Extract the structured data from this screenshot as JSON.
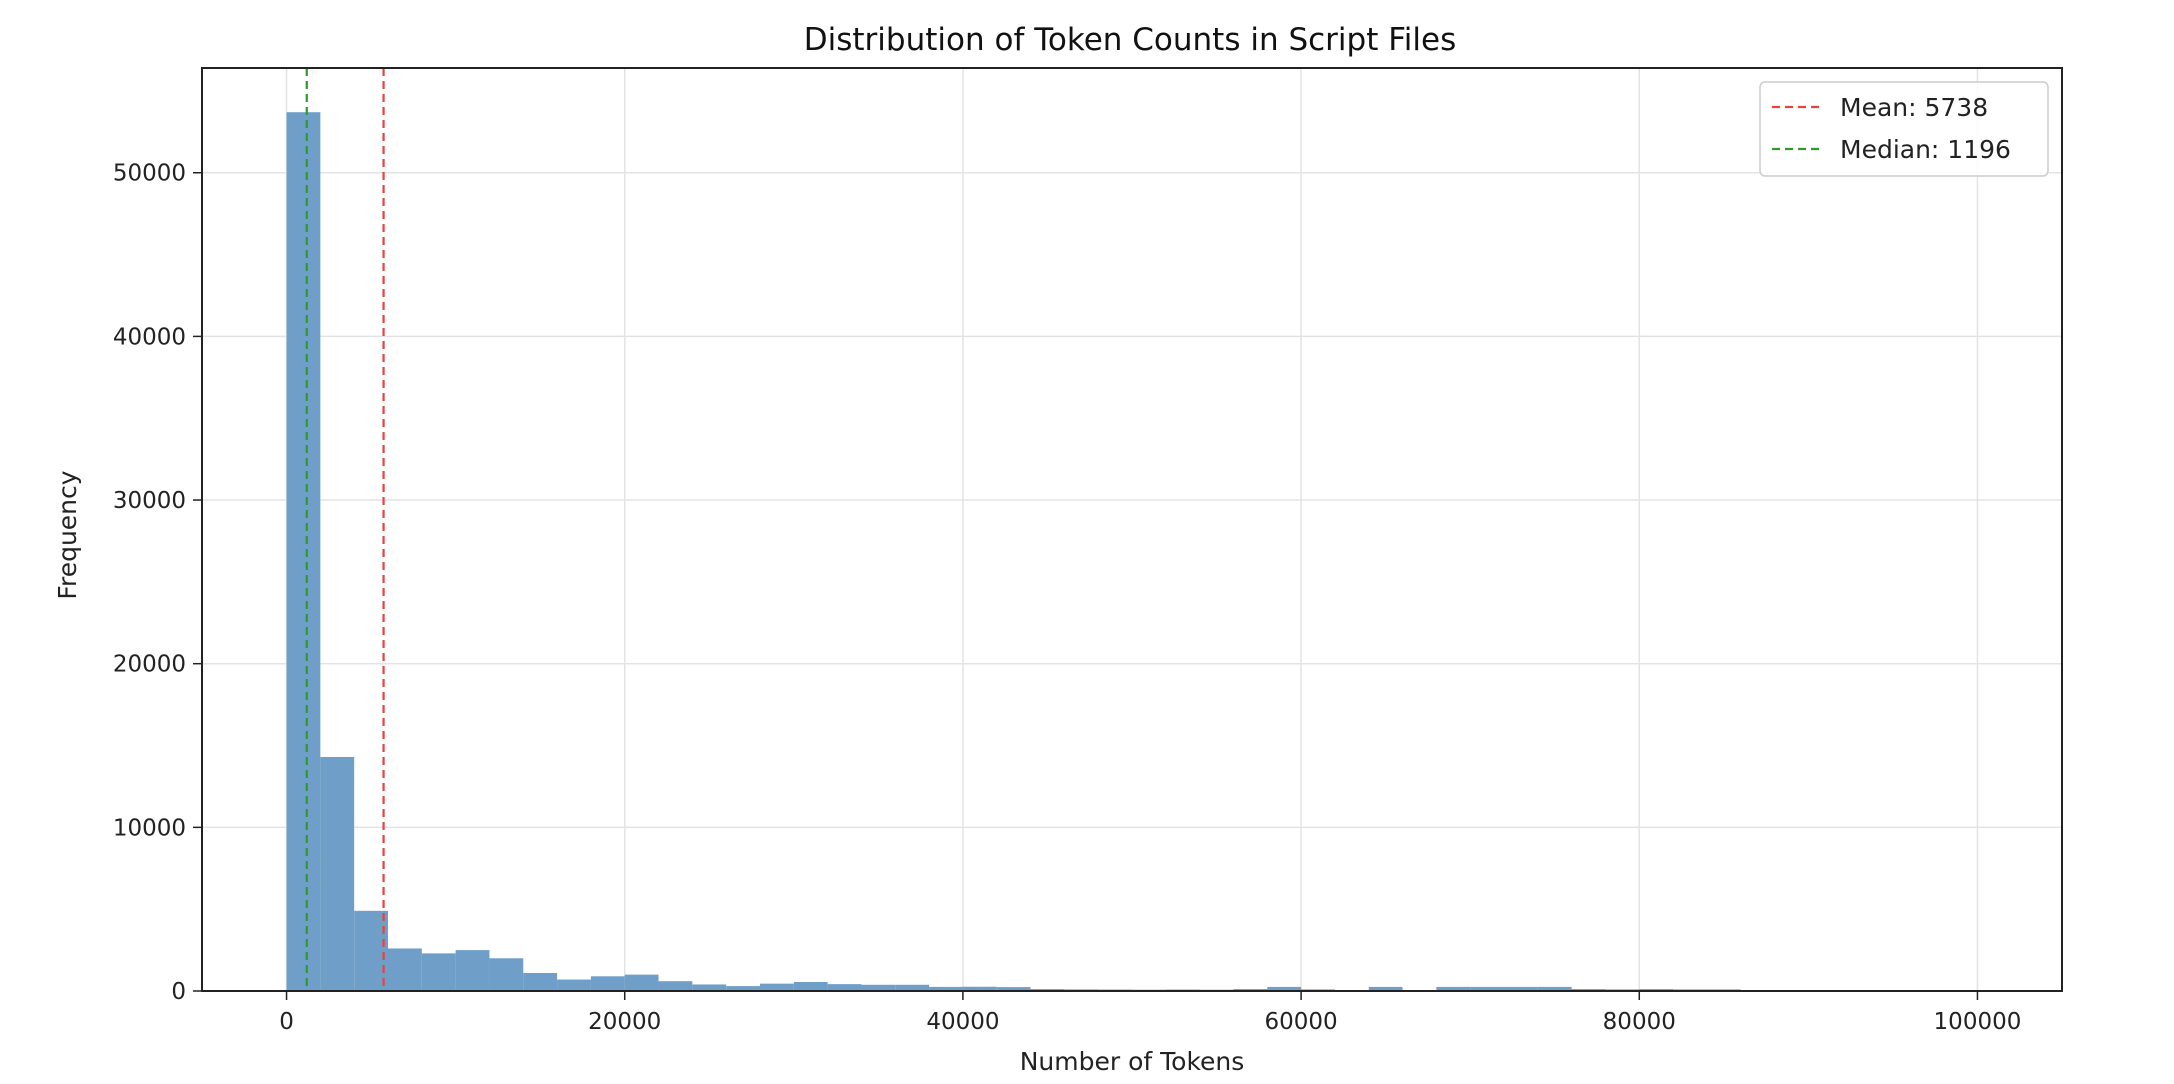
{
  "chart_data": {
    "type": "bar",
    "title": "Distribution of Token Counts in Script Files",
    "xlabel": "Number of Tokens",
    "ylabel": "Frequency",
    "xlim": [
      -5000,
      105000
    ],
    "ylim": [
      0,
      56400
    ],
    "xticks": [
      0,
      20000,
      40000,
      60000,
      80000,
      100000
    ],
    "xtick_labels": [
      "0",
      "20000",
      "40000",
      "60000",
      "80000",
      "100000"
    ],
    "yticks": [
      0,
      10000,
      20000,
      30000,
      40000,
      50000
    ],
    "ytick_labels": [
      "0",
      "10000",
      "20000",
      "30000",
      "40000",
      "50000"
    ],
    "grid": true,
    "legend_position": "top-right",
    "bar_color": "#6f9fc8",
    "bin_width": 2000,
    "bins_start": [
      0,
      2000,
      4000,
      6000,
      8000,
      10000,
      12000,
      14000,
      16000,
      18000,
      20000,
      22000,
      24000,
      26000,
      28000,
      30000,
      32000,
      34000,
      36000,
      38000,
      40000,
      42000,
      44000,
      46000,
      48000,
      50000,
      52000,
      54000,
      56000,
      58000,
      60000,
      62000,
      64000,
      66000,
      68000,
      70000,
      72000,
      74000,
      76000,
      78000,
      80000,
      82000,
      84000,
      86000,
      88000,
      90000,
      92000,
      94000,
      96000,
      98000
    ],
    "frequencies": [
      53700,
      14300,
      4900,
      2600,
      2300,
      2500,
      2000,
      1100,
      700,
      900,
      1000,
      600,
      400,
      300,
      450,
      550,
      420,
      380,
      380,
      250,
      260,
      240,
      120,
      100,
      90,
      80,
      90,
      80,
      120,
      250,
      100,
      60,
      250,
      60,
      250,
      250,
      250,
      250,
      120,
      100,
      120,
      100,
      100,
      60,
      30,
      20,
      20,
      10,
      10,
      10
    ],
    "lines": [
      {
        "name": "Mean: 5738",
        "x": 5738,
        "color": "#e8423f"
      },
      {
        "name": "Median: 1196",
        "x": 1196,
        "color": "#2e9a2e"
      }
    ]
  }
}
